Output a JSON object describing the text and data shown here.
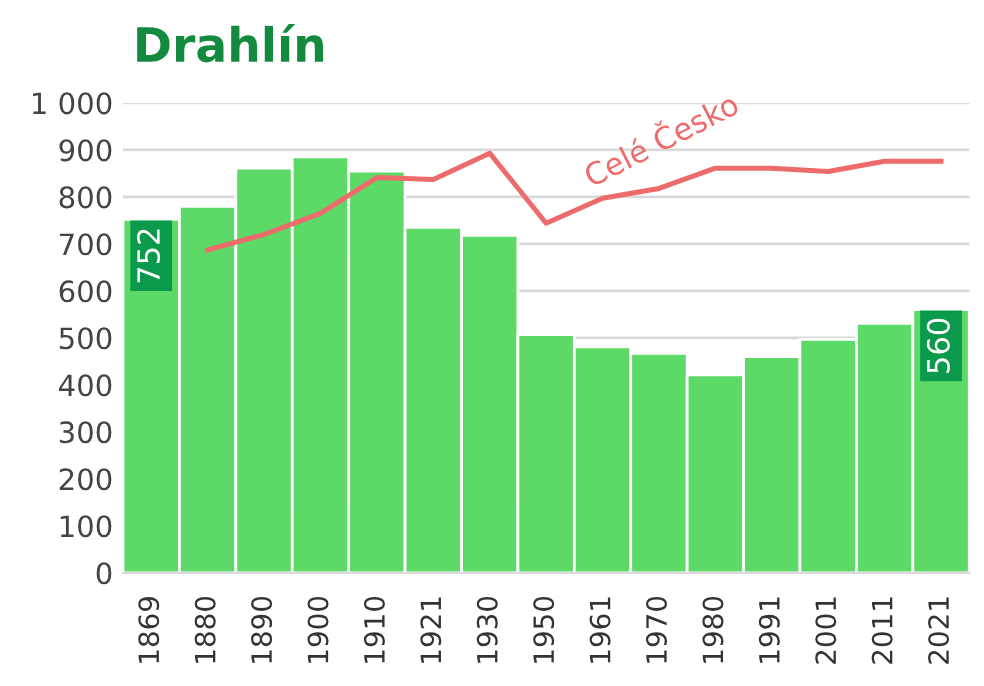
{
  "chart_data": {
    "type": "bar",
    "title": "Drahlín",
    "categories": [
      "1869",
      "1880",
      "1890",
      "1900",
      "1910",
      "1921",
      "1930",
      "1950",
      "1961",
      "1970",
      "1980",
      "1991",
      "2001",
      "2011",
      "2021"
    ],
    "series": [
      {
        "color": "#5cd966",
        "values": [
          752,
          780,
          861,
          885,
          855,
          735,
          718,
          507,
          481,
          467,
          421,
          460,
          497,
          531,
          560
        ],
        "value_labels": [
          "752",
          null,
          null,
          null,
          null,
          null,
          null,
          null,
          null,
          null,
          null,
          null,
          null,
          null,
          "560"
        ]
      },
      {
        "type": "line",
        "name": "Celé Česko",
        "color": "#ee6b6b",
        "values": [
          null,
          687,
          720,
          765,
          841,
          837,
          893,
          744,
          797,
          818,
          861,
          861,
          854,
          876,
          876
        ]
      }
    ],
    "ylim": [
      0,
      1000
    ],
    "yticks": [
      0,
      100,
      200,
      300,
      400,
      500,
      600,
      700,
      800,
      900,
      {
        "value": 1000,
        "label": "1 000"
      }
    ],
    "grid": "y"
  }
}
